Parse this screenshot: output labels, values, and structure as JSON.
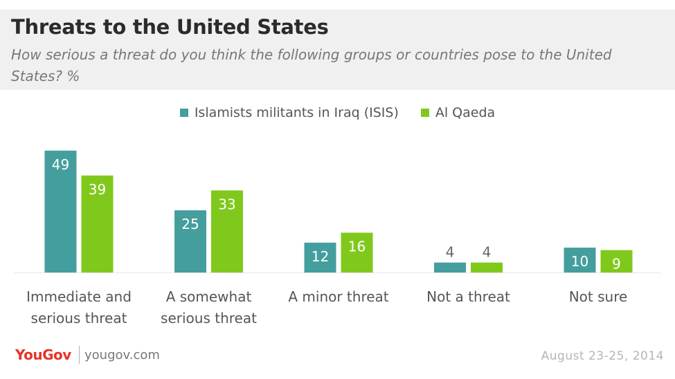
{
  "chart_data": {
    "type": "bar",
    "title": "Threats to the United States",
    "subtitle": "How serious a threat do you think the following groups or countries pose to the United States? %",
    "categories": [
      [
        "Immediate and",
        "serious threat"
      ],
      [
        "A somewhat",
        "serious threat"
      ],
      [
        "A minor threat"
      ],
      [
        "Not a threat"
      ],
      [
        "Not sure"
      ]
    ],
    "series": [
      {
        "name": "Islamists militants in Iraq (ISIS)",
        "color": "#459e9e",
        "values": [
          49,
          25,
          12,
          4,
          10
        ]
      },
      {
        "name": "Al Qaeda",
        "color": "#80c91c",
        "values": [
          39,
          33,
          16,
          4,
          9
        ]
      }
    ],
    "ylim": [
      0,
      52
    ],
    "legend": "top-center",
    "grid": false
  },
  "footer": {
    "brand": "YouGov",
    "site": "yougov.com",
    "date": "August 23-25, 2014"
  }
}
